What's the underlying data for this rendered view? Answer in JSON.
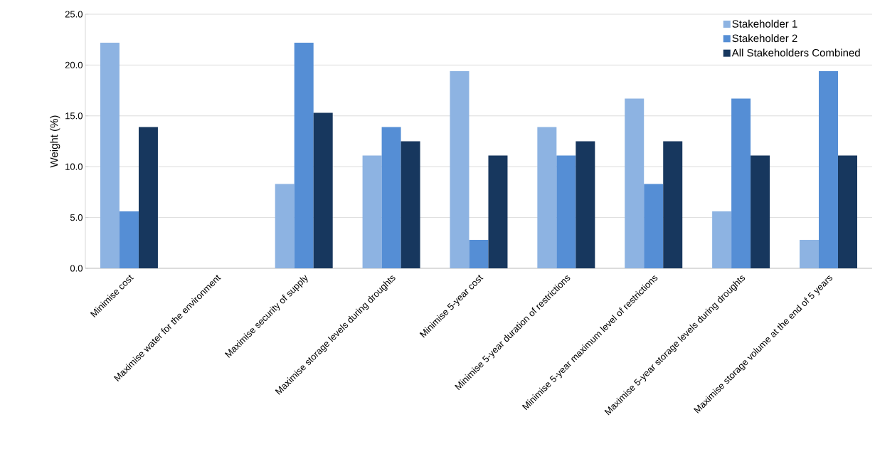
{
  "chart_data": {
    "type": "bar",
    "ylabel": "Weight (%)",
    "categories": [
      "Minimise cost",
      "Maximise water for the environment",
      "Maximise security of supply",
      "Maximise storage levels during droughts",
      "Minimise 5-year cost",
      "Minimise 5-year duration of restrictions",
      "Minimise 5-year  maximum level of restrictions",
      "Maximise 5-year storage levels during droughts",
      "Maximise storage volume at the end of 5 years"
    ],
    "series": [
      {
        "name": "Stakeholder 1",
        "color": "#8db3e2",
        "values": [
          22.2,
          0,
          8.3,
          11.1,
          19.4,
          13.9,
          16.7,
          5.6,
          2.8
        ]
      },
      {
        "name": "Stakeholder 2",
        "color": "#558ed5",
        "values": [
          5.6,
          0,
          22.2,
          13.9,
          2.8,
          11.1,
          8.3,
          16.7,
          19.4
        ]
      },
      {
        "name": "All Stakeholders Combined",
        "color": "#17375e",
        "values": [
          13.9,
          0,
          15.3,
          12.5,
          11.1,
          12.5,
          12.5,
          11.1,
          11.1
        ]
      }
    ],
    "ylim": [
      0,
      25
    ],
    "yticks": [
      {
        "value": 0,
        "label": "0.0"
      },
      {
        "value": 5,
        "label": "5.0"
      },
      {
        "value": 10,
        "label": "10.0"
      },
      {
        "value": 15,
        "label": "15.0"
      },
      {
        "value": 20,
        "label": "20.0"
      },
      {
        "value": 25,
        "label": "25.0"
      }
    ],
    "grid": "y",
    "legend": "top right"
  }
}
